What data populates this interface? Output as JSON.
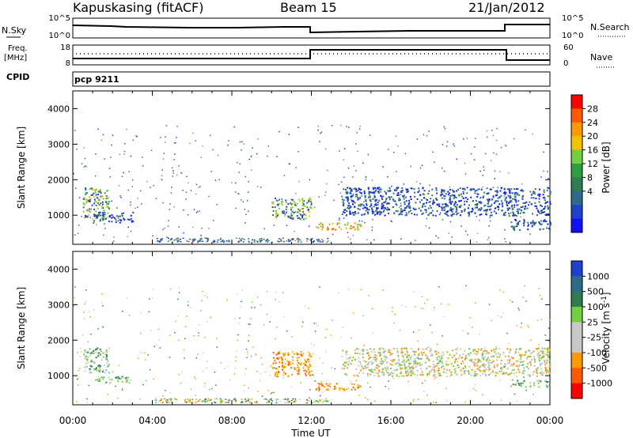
{
  "header": {
    "station": "Kapuskasing (fitACF)",
    "beam": "Beam 15",
    "date": "21/Jan/2012"
  },
  "strips": {
    "noise_left_label": "N.Sky",
    "noise_right_label": "N.Search",
    "noise_left_ticks": [
      "10^5",
      "10^0"
    ],
    "noise_right_ticks": [
      "10^5",
      "10^0"
    ],
    "freq_left_label_1": "Freq.",
    "freq_left_label_2": "[MHz]",
    "freq_left_ticks": [
      "18",
      "8"
    ],
    "freq_right_ticks": [
      "60",
      "0"
    ],
    "nave_label": "Nave",
    "cpid_label": "CPID",
    "cpid_value": "pcp 9211"
  },
  "chart_data": [
    {
      "type": "heatmap",
      "name": "power",
      "ylabel": "Slant Range [km]",
      "yticks": [
        "4000",
        "3000",
        "2000",
        "1000"
      ],
      "ylim": [
        180,
        4500
      ],
      "xlim": [
        0,
        24
      ],
      "colorbar_label": "Power [dB]",
      "colorbar_ticks": [
        "28",
        "24",
        "20",
        "16",
        "12",
        "8",
        "4"
      ],
      "colorbar_colors": [
        "#ff0000",
        "#ff5a00",
        "#ff9900",
        "#f2c300",
        "#70d040",
        "#2ea040",
        "#2e7d52",
        "#2f6a8a",
        "#1f3fcf",
        "#1010ff"
      ],
      "regions": [
        {
          "t0": 0.5,
          "t1": 1.8,
          "r0": 900,
          "r1": 1800,
          "level": "mid"
        },
        {
          "t0": 1.0,
          "t1": 3.0,
          "r0": 800,
          "r1": 1100,
          "level": "low"
        },
        {
          "t0": 10.0,
          "t1": 12.0,
          "r0": 900,
          "r1": 1500,
          "level": "mid"
        },
        {
          "t0": 12.2,
          "t1": 14.5,
          "r0": 600,
          "r1": 800,
          "level": "high"
        },
        {
          "t0": 13.5,
          "t1": 24.0,
          "r0": 1000,
          "r1": 1800,
          "level": "low"
        },
        {
          "t0": 22.0,
          "t1": 24.0,
          "r0": 600,
          "r1": 900,
          "level": "low"
        }
      ]
    },
    {
      "type": "heatmap",
      "name": "velocity",
      "ylabel": "Slant Range [km]",
      "yticks": [
        "4000",
        "3000",
        "2000",
        "1000"
      ],
      "ylim": [
        180,
        4500
      ],
      "xlim": [
        0,
        24
      ],
      "xticks": [
        "00:00",
        "04:00",
        "08:00",
        "12:00",
        "16:00",
        "20:00",
        "00:00"
      ],
      "xlabel": "Time UT",
      "colorbar_label_main": "Velocity",
      "colorbar_label_units": "[m s",
      "colorbar_label_exp": "-1",
      "colorbar_label_close": "]",
      "colorbar_ticks": [
        "1000",
        "500",
        "100",
        "25",
        "-25",
        "-100",
        "-500",
        "-1000"
      ],
      "colorbar_colors": [
        "#1f3fcf",
        "#2f6a8a",
        "#2e7d52",
        "#70d040",
        "#c8c8c8",
        "#c8c8c8",
        "#ff9900",
        "#ff5a00",
        "#ff0000"
      ],
      "regions": [
        {
          "t0": 0.5,
          "t1": 1.8,
          "r0": 1100,
          "r1": 1800,
          "color": "green"
        },
        {
          "t0": 1.0,
          "t1": 3.0,
          "r0": 800,
          "r1": 1000,
          "color": "green"
        },
        {
          "t0": 10.0,
          "t1": 12.0,
          "r0": 1000,
          "r1": 1700,
          "color": "orange"
        },
        {
          "t0": 12.2,
          "t1": 14.5,
          "r0": 600,
          "r1": 800,
          "color": "orange"
        },
        {
          "t0": 13.5,
          "t1": 24.0,
          "r0": 1000,
          "r1": 1800,
          "color": "gray"
        },
        {
          "t0": 22.0,
          "t1": 24.0,
          "r0": 700,
          "r1": 900,
          "color": "green"
        }
      ]
    }
  ]
}
